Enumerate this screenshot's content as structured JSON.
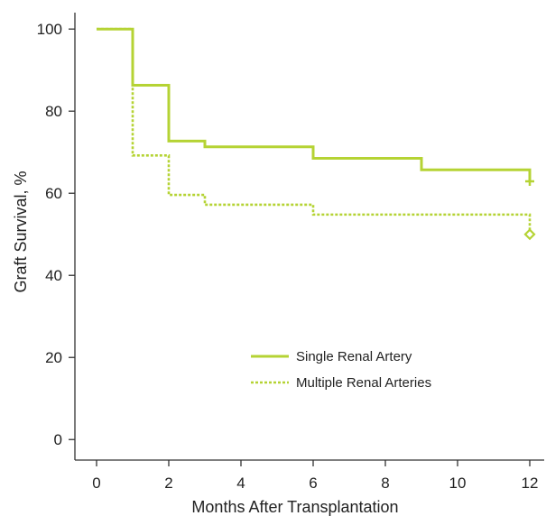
{
  "chart_data": {
    "type": "line",
    "step": true,
    "title": "",
    "xlabel": "Months After Transplantation",
    "ylabel": "Graft Survival, %",
    "xlim": [
      -0.6,
      12.4
    ],
    "ylim": [
      -5,
      104
    ],
    "xticks": [
      0,
      2,
      4,
      6,
      8,
      10,
      12
    ],
    "yticks": [
      0,
      20,
      40,
      60,
      80,
      100
    ],
    "grid": false,
    "legend_position": "lower-right",
    "series": [
      {
        "name": "Single Renal Artery",
        "line_style": "solid",
        "color": "#b5d334",
        "x": [
          0,
          1,
          2,
          3,
          6,
          9,
          12
        ],
        "y": [
          100,
          86.3,
          72.7,
          71.3,
          68.5,
          65.7,
          62.9
        ],
        "censor_marker": "plus",
        "censor_point": [
          12,
          62.9
        ]
      },
      {
        "name": "Multiple Renal Arteries",
        "line_style": "dashed",
        "color": "#b5d334",
        "x": [
          0,
          1,
          2,
          3,
          6,
          12
        ],
        "y": [
          100,
          69.2,
          59.6,
          57.2,
          54.8,
          50.0
        ],
        "censor_marker": "diamond",
        "censor_point": [
          12,
          50.0
        ]
      }
    ]
  }
}
